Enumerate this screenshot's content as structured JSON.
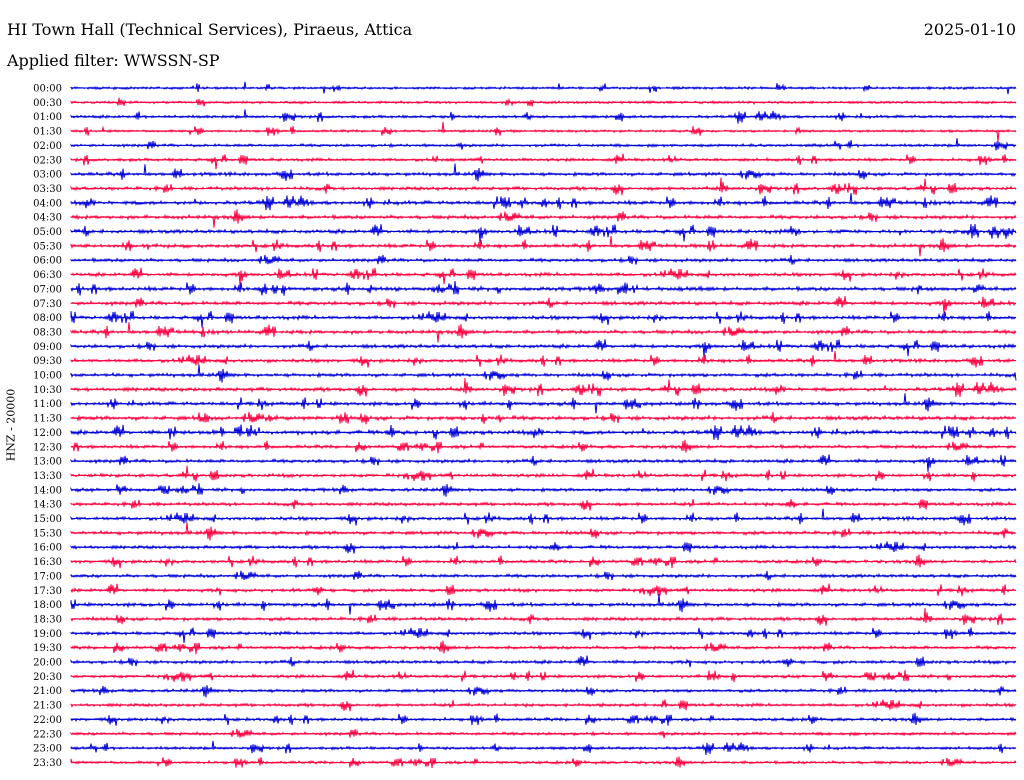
{
  "header": {
    "station": "HI Town Hall (Technical Services), Piraeus, Attica",
    "date": "2025-01-10",
    "filter": "Applied filter: WWSSN-SP"
  },
  "chart_data": {
    "type": "line",
    "title": "HI Town Hall (Technical Services), Piraeus, Attica",
    "ylabel": "HNZ - 20000",
    "row_labels": [
      "00:00",
      "00:30",
      "01:00",
      "01:30",
      "02:00",
      "02:30",
      "03:00",
      "03:30",
      "04:00",
      "04:30",
      "05:00",
      "05:30",
      "06:00",
      "06:30",
      "07:00",
      "07:30",
      "08:00",
      "08:30",
      "09:00",
      "09:30",
      "10:00",
      "10:30",
      "11:00",
      "11:30",
      "12:00",
      "12:30",
      "13:00",
      "13:30",
      "14:00",
      "14:30",
      "15:00",
      "15:30",
      "16:00",
      "16:30",
      "17:00",
      "17:30",
      "18:00",
      "18:30",
      "19:00",
      "19:30",
      "20:00",
      "20:30",
      "21:00",
      "21:30",
      "22:00",
      "22:30",
      "23:00",
      "23:30"
    ],
    "series_colors": [
      "#0000d8",
      "#ff0040"
    ],
    "row_noise_levels": [
      0.25,
      0.25,
      0.35,
      0.25,
      0.35,
      0.4,
      0.55,
      0.55,
      0.65,
      0.65,
      0.65,
      0.6,
      0.55,
      0.55,
      0.7,
      0.65,
      0.6,
      0.65,
      0.6,
      0.55,
      0.6,
      0.65,
      0.6,
      0.75,
      0.7,
      0.5,
      0.55,
      0.5,
      0.5,
      0.5,
      0.55,
      0.6,
      0.5,
      0.5,
      0.5,
      0.5,
      0.6,
      0.55,
      0.45,
      0.5,
      0.5,
      0.45,
      0.45,
      0.45,
      0.45,
      0.4,
      0.35,
      0.35
    ],
    "grid": false
  }
}
